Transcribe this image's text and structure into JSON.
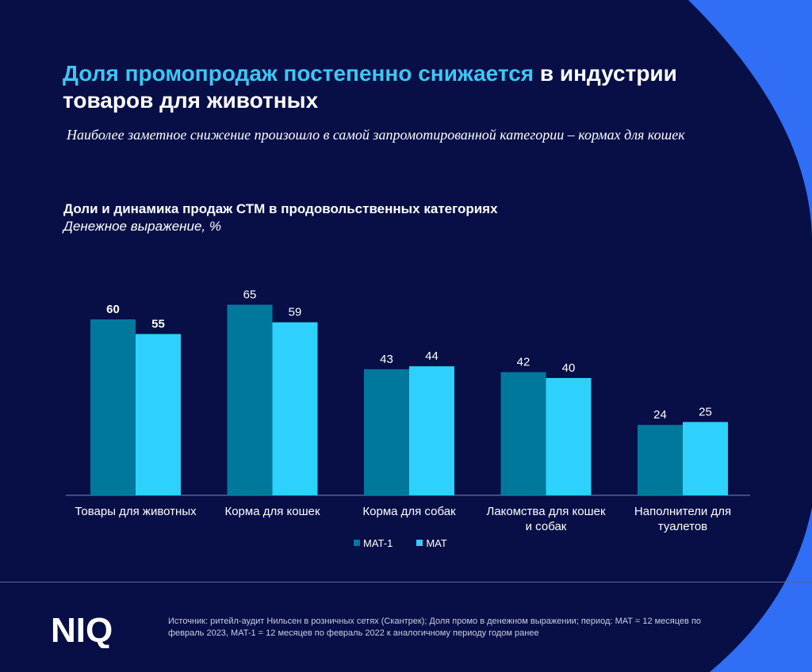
{
  "header": {
    "title_highlight": "Доля промопродаж постепенно снижается",
    "title_rest": " в индустрии товаров для животных",
    "subtitle": "Наиболее заметное снижение произошло в самой запромотированной категории – кормах для кошек"
  },
  "chart_data": {
    "type": "bar",
    "title": "Доли и динамика продаж СТМ в продовольственных категориях",
    "subtitle": "Денежное выражение, %",
    "categories": [
      [
        "Товары для животных"
      ],
      [
        "Корма для кошек"
      ],
      [
        "Корма для собак"
      ],
      [
        "Лакомства для кошек",
        "и собак"
      ],
      [
        "Наполнители для",
        "туалетов"
      ]
    ],
    "series": [
      {
        "name": "MAT-1",
        "color": "#00789c",
        "values": [
          60,
          65,
          43,
          42,
          24
        ]
      },
      {
        "name": "MAT",
        "color": "#2dd1fb",
        "values": [
          55,
          59,
          44,
          40,
          25
        ]
      }
    ],
    "bold_labels_category_index": 0,
    "ylim": [
      0,
      70
    ],
    "legend": "bottom-center",
    "grid": false
  },
  "footer": {
    "logo_text": "NIQ",
    "source": "Источник: ритейл-аудит Нильсен в розничных сетях (Скантрек); Доля промо в денежном выражении; период: MAT = 12 месяцев по февраль 2023, MAT-1 = 12 месяцев по февраль 2022 к аналогичному периоду годом ранее"
  },
  "colors": {
    "background": "#070f46",
    "accent_arc": "#2f6ef5",
    "title_highlight": "#3ec6f5"
  }
}
